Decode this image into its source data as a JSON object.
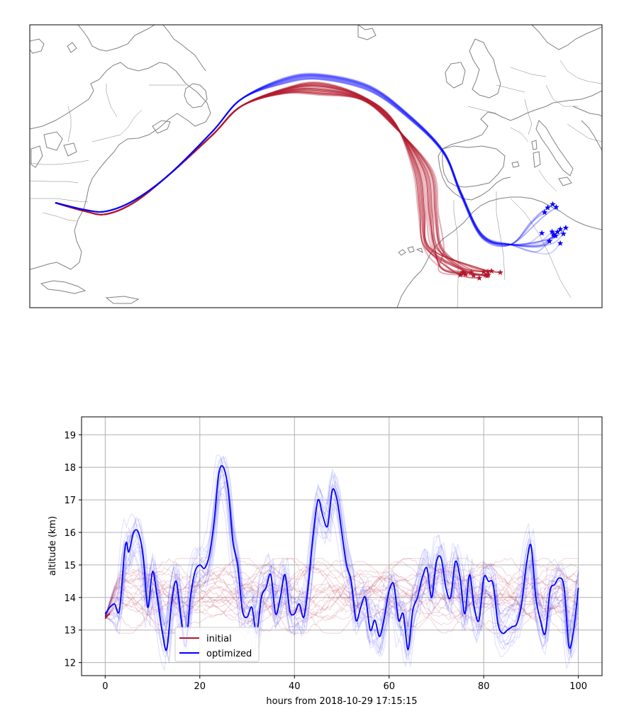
{
  "colors": {
    "initial": "#b2182b",
    "optimized": "#0000ff",
    "coast": "#808080",
    "grid": "#b0b0b0"
  },
  "map_panel": {
    "coastline_icon": "coastline-map",
    "initial_end_count": 14,
    "optimized_end_count": 15
  },
  "chart_data": [
    {
      "type": "line",
      "title": "",
      "xlabel": "hours from 2018-10-29 17:15:15",
      "ylabel": "altitude (km)",
      "xlim": [
        -5,
        105
      ],
      "ylim": [
        11.6,
        19.55
      ],
      "xticks": [
        0,
        20,
        40,
        60,
        80,
        100
      ],
      "yticks": [
        12,
        13,
        14,
        15,
        16,
        17,
        18,
        19
      ],
      "grid": true,
      "legend": {
        "placement": "lower-left",
        "entries": [
          {
            "label": "initial",
            "color": "#b2182b"
          },
          {
            "label": "optimized",
            "color": "#0000ff"
          }
        ]
      },
      "series": [
        {
          "name": "optimized",
          "x": [
            0,
            1,
            2,
            3,
            4,
            4.5,
            5,
            6,
            7,
            8,
            9,
            10,
            11,
            12,
            13,
            14,
            15,
            16,
            17,
            18,
            19,
            20,
            21,
            22,
            23,
            24,
            25,
            26,
            27,
            28,
            29,
            30,
            31,
            32,
            33,
            34,
            35,
            36,
            37,
            38,
            39,
            40,
            41,
            42,
            43,
            44,
            45,
            46,
            47,
            48,
            49,
            50,
            51,
            52,
            53,
            54,
            55,
            56,
            57,
            58,
            59,
            60,
            61,
            62,
            63,
            64,
            65,
            66,
            67,
            68,
            69,
            70,
            71,
            72,
            73,
            74,
            75,
            76,
            77,
            78,
            79,
            80,
            81,
            82,
            83,
            84,
            85,
            86,
            87,
            88,
            89,
            90,
            91,
            92,
            93,
            94,
            95,
            96,
            97,
            98,
            99,
            100
          ],
          "y": [
            13.5,
            13.7,
            13.8,
            13.6,
            15.3,
            15.7,
            15.4,
            16.0,
            16.0,
            15.3,
            13.7,
            14.8,
            14.0,
            13.0,
            12.4,
            13.8,
            14.5,
            13.4,
            12.5,
            14.0,
            14.8,
            15.0,
            14.9,
            15.3,
            16.3,
            17.8,
            18.0,
            17.3,
            15.7,
            15.0,
            13.6,
            13.4,
            13.7,
            12.9,
            14.0,
            14.3,
            14.7,
            13.5,
            14.0,
            14.7,
            13.6,
            13.5,
            13.8,
            13.4,
            14.5,
            16.0,
            17.0,
            16.5,
            16.2,
            17.3,
            17.0,
            16.0,
            15.0,
            14.5,
            13.3,
            13.7,
            14.0,
            13.0,
            13.3,
            12.8,
            13.4,
            14.2,
            14.4,
            13.3,
            13.5,
            12.4,
            13.6,
            14.0,
            14.6,
            14.9,
            14.0,
            15.1,
            15.2,
            14.3,
            14.0,
            15.1,
            14.6,
            13.5,
            14.7,
            13.7,
            13.3,
            14.6,
            14.5,
            14.4,
            13.2,
            12.9,
            13.0,
            13.1,
            13.2,
            13.8,
            15.0,
            15.6,
            14.0,
            13.3,
            12.9,
            14.2,
            14.4,
            14.6,
            14.3,
            12.5,
            13.0,
            14.3
          ]
        },
        {
          "name": "initial",
          "x": [
            0,
            0.5,
            1
          ],
          "y": [
            13.35,
            13.45,
            13.5
          ]
        }
      ]
    }
  ]
}
